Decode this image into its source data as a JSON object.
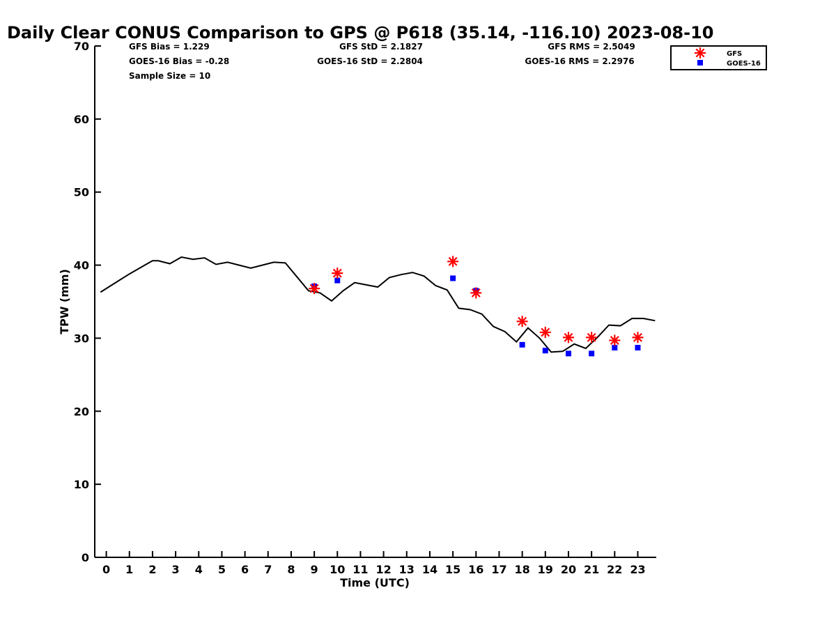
{
  "chart_data": {
    "type": "scatter",
    "title": "Daily Clear CONUS Comparison to GPS @ P618 (35.14, -116.10) 2023-08-10",
    "xlabel": "Time (UTC)",
    "ylabel": "TPW (mm)",
    "xlim": [
      -0.5,
      23.8
    ],
    "ylim": [
      0,
      70
    ],
    "grid": false,
    "legend_position": "top-right",
    "x_ticks": [
      0,
      1,
      2,
      3,
      4,
      5,
      6,
      7,
      8,
      9,
      10,
      11,
      12,
      13,
      14,
      15,
      16,
      17,
      18,
      19,
      20,
      21,
      22,
      23
    ],
    "y_ticks": [
      0,
      10,
      20,
      30,
      40,
      50,
      60,
      70
    ],
    "stats": {
      "gfs_bias": "GFS Bias = 1.229",
      "goes_bias": "GOES-16 Bias = -0.28",
      "sample_size": "Sample Size = 10",
      "gfs_std": "GFS StD = 2.1827",
      "goes_std": "GOES-16 StD = 2.2804",
      "gfs_rms": "GFS RMS = 2.5049",
      "goes_rms": "GOES-16 RMS = 2.2976"
    },
    "gps_line": {
      "x": [
        -0.25,
        0,
        0.5,
        1,
        1.5,
        2,
        2.25,
        2.75,
        3.25,
        3.75,
        4.25,
        4.75,
        5.25,
        5.75,
        6.25,
        6.75,
        7.25,
        7.75,
        8.25,
        8.75,
        9.25,
        9.75,
        10.25,
        10.75,
        11.25,
        11.75,
        12.25,
        12.75,
        13.25,
        13.75,
        14.25,
        14.75,
        15.25,
        15.75,
        16.25,
        16.75,
        17.25,
        17.75,
        18.25,
        18.75,
        19.25,
        19.75,
        20.25,
        20.75,
        21.25,
        21.75,
        22.25,
        22.75,
        23.25,
        23.75
      ],
      "y": [
        36.3,
        36.8,
        37.8,
        38.8,
        39.7,
        40.6,
        40.6,
        40.2,
        41.1,
        40.8,
        41.0,
        40.1,
        40.4,
        40.0,
        39.6,
        40.0,
        40.4,
        40.3,
        38.4,
        36.5,
        36.2,
        35.1,
        36.5,
        37.6,
        37.3,
        37.0,
        38.3,
        38.7,
        39.0,
        38.5,
        37.2,
        36.6,
        34.1,
        33.9,
        33.3,
        31.6,
        30.9,
        29.5,
        31.4,
        30.0,
        28.1,
        28.2,
        29.2,
        28.6,
        30.1,
        31.8,
        31.7,
        32.7,
        32.7,
        32.4
      ]
    },
    "series": [
      {
        "name": "GFS",
        "color": "#ff0000",
        "marker": "asterisk",
        "x": [
          9,
          10,
          15,
          16,
          18,
          19,
          20,
          21,
          22,
          23
        ],
        "y": [
          36.8,
          38.9,
          40.5,
          36.2,
          32.3,
          30.8,
          30.1,
          30.1,
          29.7,
          30.1
        ]
      },
      {
        "name": "GOES-16",
        "color": "#0000ff",
        "marker": "square",
        "x": [
          9,
          10,
          15,
          16,
          18,
          19,
          20,
          21,
          22,
          23
        ],
        "y": [
          37.1,
          37.9,
          38.2,
          36.5,
          29.1,
          28.3,
          27.9,
          27.9,
          28.7,
          28.7
        ]
      }
    ]
  }
}
